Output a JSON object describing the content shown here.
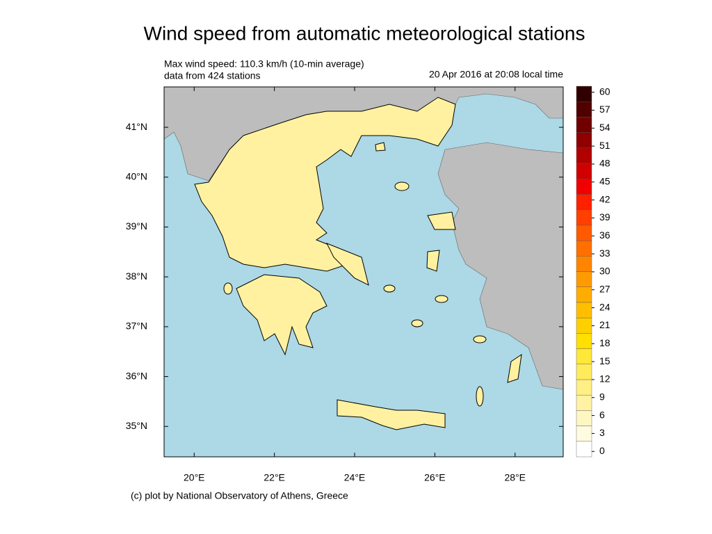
{
  "header": {
    "title": "Wind speed from automatic meteorological stations"
  },
  "info": {
    "max_wind": "Max wind speed: 110.3 km/h (10-min average)",
    "stations": "data from 424 stations",
    "time": "20 Apr 2016 at 20:08 local time"
  },
  "map": {
    "lonlim": [
      19.25,
      29.2
    ],
    "latlim": [
      34.39,
      41.81
    ],
    "lon_ticks": [
      {
        "value": 20,
        "label": "20°E"
      },
      {
        "value": 22,
        "label": "22°E"
      },
      {
        "value": 24,
        "label": "24°E"
      },
      {
        "value": 26,
        "label": "26°E"
      },
      {
        "value": 28,
        "label": "28°E"
      }
    ],
    "lat_ticks": [
      {
        "value": 41,
        "label": "41°N"
      },
      {
        "value": 40,
        "label": "40°N"
      },
      {
        "value": 39,
        "label": "39°N"
      },
      {
        "value": 38,
        "label": "38°N"
      },
      {
        "value": 37,
        "label": "37°N"
      },
      {
        "value": 36,
        "label": "36°N"
      },
      {
        "value": 35,
        "label": "35°N"
      }
    ]
  },
  "colorbar": {
    "lim": [
      -0.9,
      61
    ],
    "ticks": [
      0,
      3,
      6,
      9,
      12,
      15,
      18,
      21,
      24,
      27,
      30,
      33,
      36,
      39,
      42,
      45,
      48,
      51,
      54,
      57,
      60
    ],
    "colors": [
      "#ffffff",
      "#fffbe0",
      "#fff7c2",
      "#fff3a3",
      "#ffef85",
      "#ffeb5c",
      "#ffe838",
      "#ffe000",
      "#ffd000",
      "#ffbf00",
      "#ffad00",
      "#ff9a00",
      "#ff8500",
      "#ff7000",
      "#ff5a00",
      "#ff4000",
      "#ff2000",
      "#f00000",
      "#d00000",
      "#b00000",
      "#900000",
      "#700000",
      "#500000",
      "#300000"
    ]
  },
  "footer": {
    "credit": "(c) plot by National Observatory of Athens, Greece"
  }
}
